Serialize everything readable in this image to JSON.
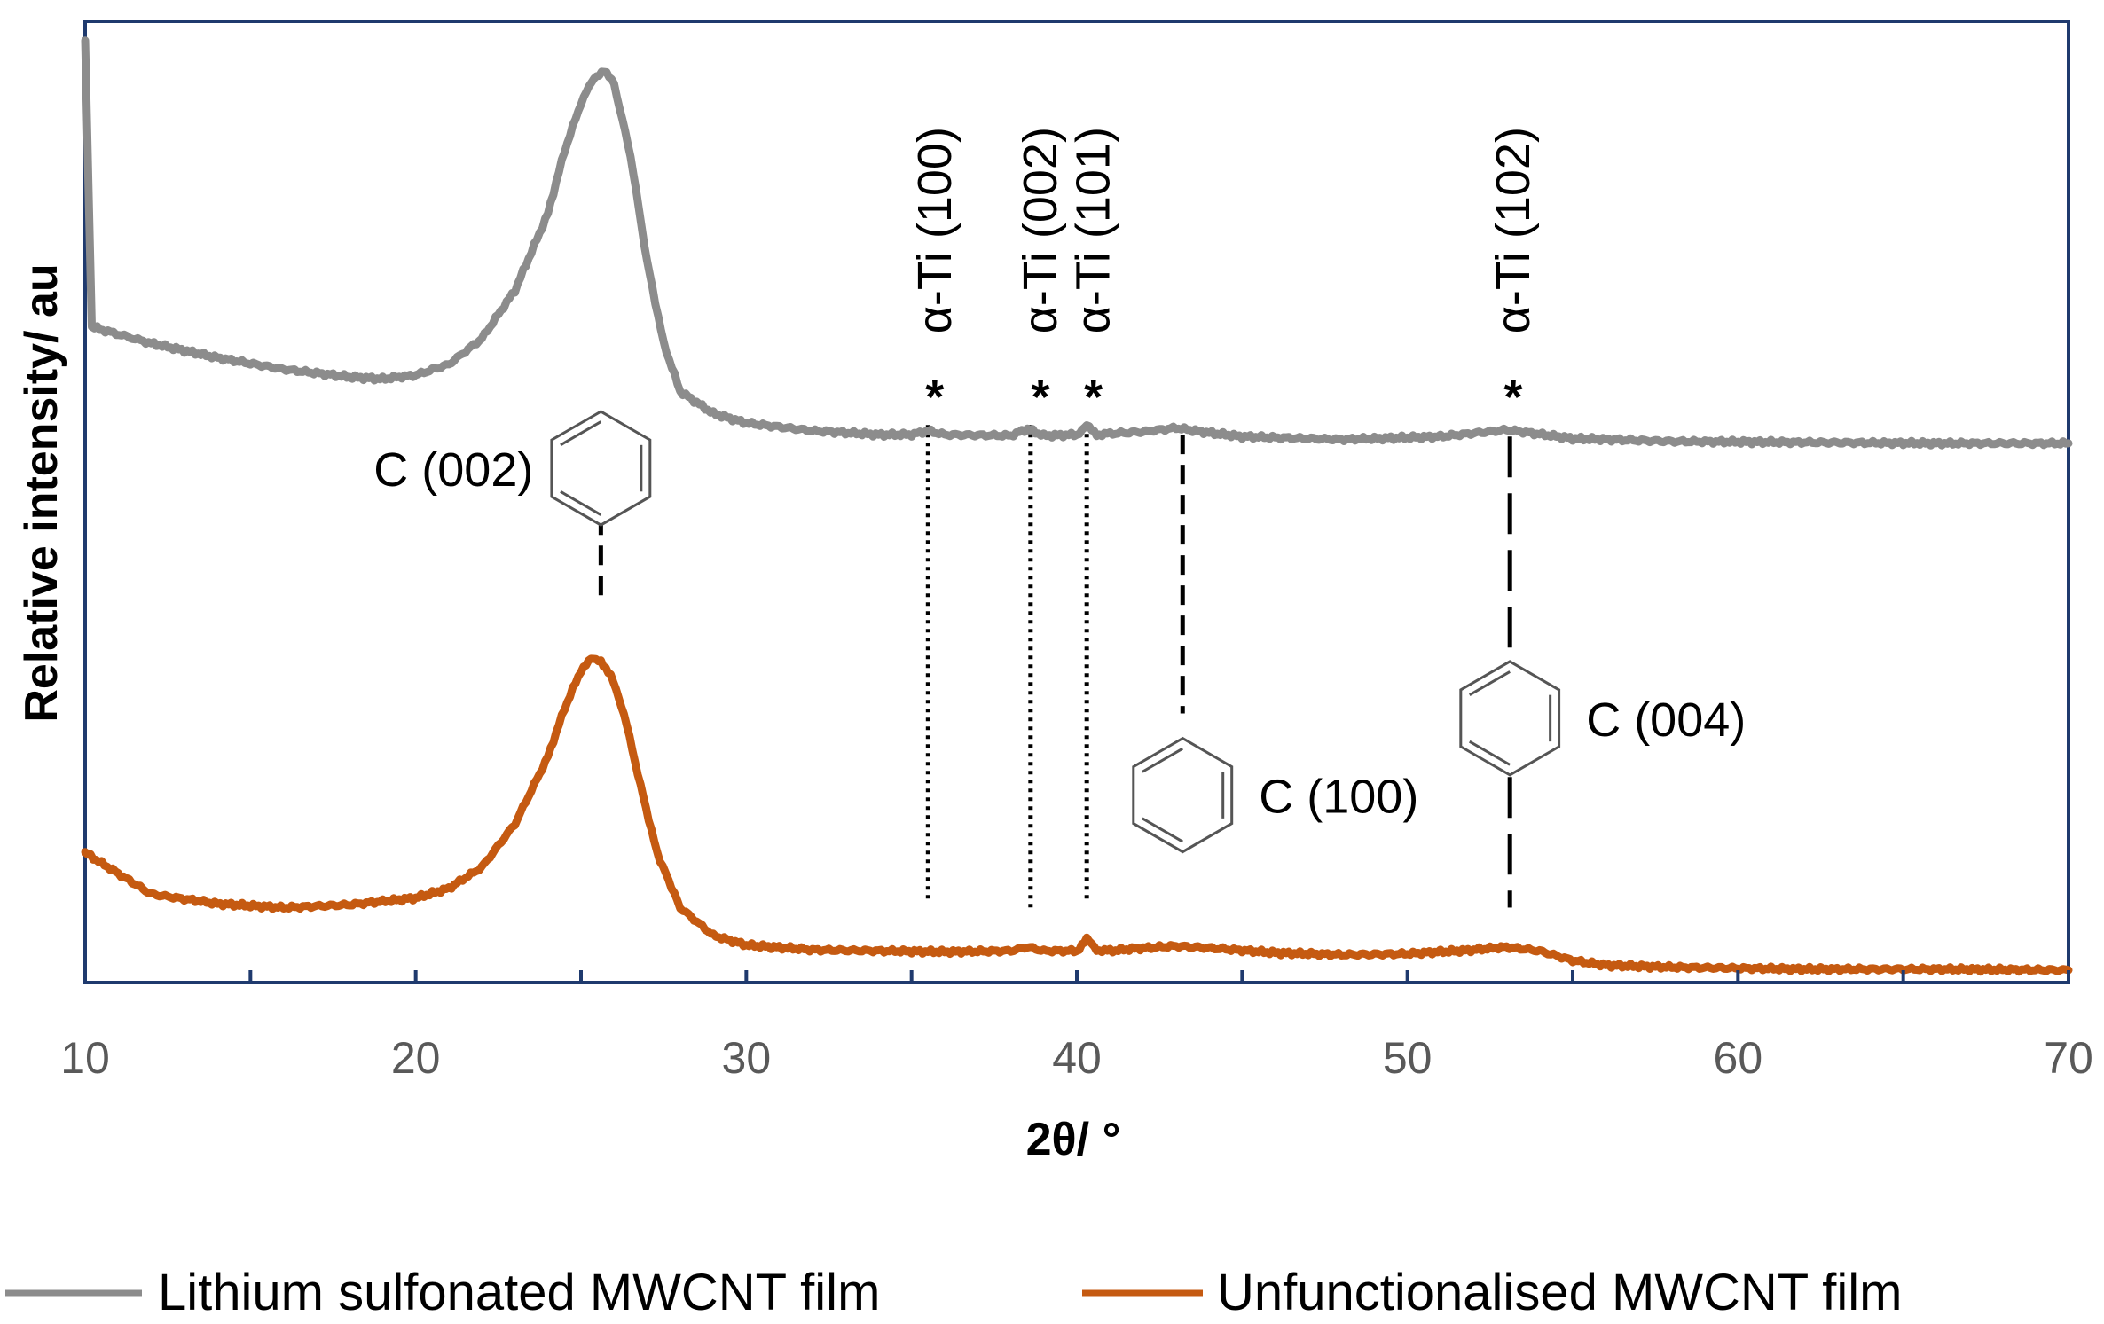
{
  "chart_data": {
    "type": "line",
    "title": "",
    "xlabel": "2θ/ °",
    "ylabel": "Relative intensity/ au",
    "xlim": [
      10,
      70
    ],
    "ylim": [
      0,
      100
    ],
    "x_ticks": [
      "10",
      "20",
      "30",
      "40",
      "50",
      "60",
      "70"
    ],
    "grid": false,
    "legend_position": "bottom",
    "series": [
      {
        "name": "Lithium sulfonated MWCNT film",
        "color": "#8c8c8c",
        "x": [
          10,
          10.2,
          12,
          14,
          16,
          18,
          19,
          20,
          21,
          22,
          23,
          24,
          24.5,
          25,
          25.4,
          25.7,
          26,
          26.5,
          27,
          27.5,
          28,
          29,
          30,
          32,
          34,
          35,
          35.5,
          36,
          38,
          38.5,
          39,
          40,
          40.3,
          40.6,
          41,
          42,
          43,
          44,
          45,
          48,
          51,
          53,
          55,
          58,
          62,
          66,
          70
        ],
        "values": [
          98,
          68.2,
          66.5,
          65,
          63.8,
          63,
          62.8,
          63.2,
          64.3,
          67,
          72,
          80,
          86.5,
          91.5,
          94.2,
          94.8,
          93.5,
          86,
          75,
          66.5,
          61.5,
          59.2,
          58.2,
          57.4,
          57,
          57,
          57.4,
          57,
          56.9,
          57.6,
          56.9,
          57,
          57.9,
          57,
          57.1,
          57.3,
          57.7,
          57.2,
          56.8,
          56.5,
          56.8,
          57.5,
          56.6,
          56.3,
          56.2,
          56.1,
          56.1
        ]
      },
      {
        "name": "Unfunctionalised MWCNT film",
        "color": "#c55a11",
        "x": [
          10,
          12,
          14,
          16,
          18,
          20,
          21,
          22,
          23,
          24,
          24.5,
          25,
          25.3,
          25.6,
          25.9,
          26.3,
          26.8,
          27.3,
          28,
          29,
          30,
          32,
          34,
          36,
          38,
          38.5,
          39,
          40,
          40.3,
          40.6,
          41,
          42,
          43,
          44,
          46,
          48,
          50,
          52,
          53,
          54,
          55,
          56,
          58,
          62,
          66,
          70
        ],
        "values": [
          13.5,
          9.2,
          8.2,
          7.8,
          8.1,
          8.8,
          9.8,
          12,
          16.5,
          23.5,
          28.5,
          32.5,
          33.6,
          33.5,
          32,
          28,
          20.5,
          13.5,
          7.8,
          4.9,
          3.9,
          3.4,
          3.3,
          3.2,
          3.3,
          3.7,
          3.3,
          3.3,
          4.5,
          3.4,
          3.3,
          3.6,
          3.8,
          3.6,
          3.1,
          2.9,
          3,
          3.4,
          3.7,
          3.3,
          2.3,
          1.8,
          1.6,
          1.4,
          1.4,
          1.3
        ]
      }
    ],
    "reference_lines": [
      {
        "x": 25.6,
        "from": 58,
        "to": 39.5,
        "style": "dashed"
      },
      {
        "x": 35.5,
        "from": 58,
        "to": 8.2,
        "style": "dotted"
      },
      {
        "x": 38.6,
        "from": 58,
        "to": 7.8,
        "style": "dotted"
      },
      {
        "x": 40.3,
        "from": 58,
        "to": 8.5,
        "style": "dotted"
      },
      {
        "x": 43.2,
        "from": 57,
        "to": 28,
        "style": "dashed"
      },
      {
        "x": 53.1,
        "from": 56.8,
        "to": 7.8,
        "style": "longdash"
      }
    ],
    "annotations": [
      {
        "label": "C (002)",
        "x": 25.6,
        "y": 53.5,
        "hexagon": true,
        "side": "left"
      },
      {
        "label": "α-Ti (100)",
        "x": 35.7,
        "y": 67.5,
        "vertical": true
      },
      {
        "label": "α-Ti (002)",
        "x": 38.9,
        "y": 67.5,
        "vertical": true
      },
      {
        "label": "α-Ti (101)",
        "x": 40.5,
        "y": 67.5,
        "vertical": true
      },
      {
        "label": "α-Ti (102)",
        "x": 53.2,
        "y": 67.5,
        "vertical": true
      },
      {
        "label": "C (100)",
        "x": 43.2,
        "y": 19.5,
        "hexagon": true,
        "side": "right"
      },
      {
        "label": "C (004)",
        "x": 53.1,
        "y": 27.5,
        "hexagon": true,
        "side": "right"
      }
    ],
    "markers": [
      {
        "label": "*",
        "x": 35.7,
        "y": 62
      },
      {
        "label": "*",
        "x": 38.9,
        "y": 62
      },
      {
        "label": "*",
        "x": 40.5,
        "y": 62
      },
      {
        "label": "*",
        "x": 53.2,
        "y": 62
      }
    ]
  }
}
